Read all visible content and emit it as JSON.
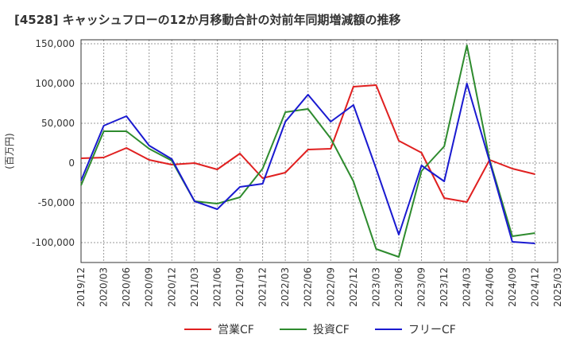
{
  "chart_data": {
    "type": "line",
    "title": "[4528]  キャッシュフローの12か月移動合計の対前年同期増減額の推移",
    "ylabel": "(百万円)",
    "xlabel": "",
    "ylim": [
      -125000,
      155000
    ],
    "yticks": [
      150000,
      100000,
      50000,
      0,
      -50000,
      -100000
    ],
    "ytick_labels": [
      "150,000",
      "100,000",
      "50,000",
      "0",
      "-50,000",
      "-100,000"
    ],
    "x_tick_labels": [
      "2019/12",
      "2020/03",
      "2020/06",
      "2020/09",
      "2020/12",
      "2021/03",
      "2021/06",
      "2021/09",
      "2021/12",
      "2022/03",
      "2022/06",
      "2022/09",
      "2022/12",
      "2023/03",
      "2023/06",
      "2023/09",
      "2023/12",
      "2024/03",
      "2024/06",
      "2024/09",
      "2024/12",
      "2025/03"
    ],
    "grid": true,
    "legend_position": "bottom",
    "series": [
      {
        "name": "営業CF",
        "color": "#e02020",
        "values": [
          6000,
          7000,
          19000,
          4000,
          -2000,
          0,
          -8000,
          12000,
          -19000,
          -12000,
          17000,
          18000,
          96000,
          98000,
          28000,
          13000,
          -44000,
          -49000,
          4000,
          -7000,
          -14000,
          null
        ]
      },
      {
        "name": "投資CF",
        "color": "#2e8b2e",
        "values": [
          -28000,
          40000,
          40000,
          18000,
          3000,
          -48000,
          -51000,
          -43000,
          -7000,
          64000,
          68000,
          31000,
          -23000,
          -108000,
          -118000,
          -10000,
          21000,
          148000,
          4000,
          -92000,
          -88000,
          null
        ]
      },
      {
        "name": "フリーCF",
        "color": "#1a1ad0",
        "values": [
          -22000,
          47000,
          59000,
          22000,
          5000,
          -48000,
          -58000,
          -30000,
          -26000,
          52000,
          86000,
          52000,
          73000,
          -7000,
          -90000,
          -3000,
          -23000,
          100000,
          2000,
          -99000,
          -101000,
          null
        ]
      }
    ]
  }
}
